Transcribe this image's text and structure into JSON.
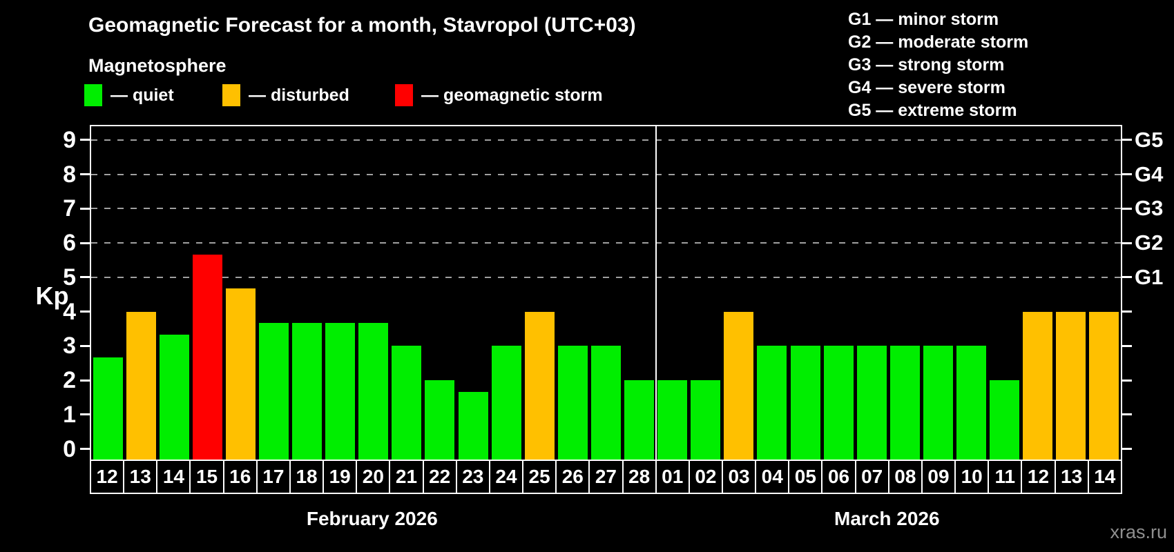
{
  "title": "Geomagnetic Forecast for a month, Stavropol (UTC+03)",
  "subtitle": "Magnetosphere",
  "watermark": "xras.ru",
  "legend": [
    {
      "key": "quiet",
      "label": "— quiet",
      "color": "#00ee00",
      "x": 122
    },
    {
      "key": "disturbed",
      "label": "— disturbed",
      "color": "#ffc000",
      "x": 322
    },
    {
      "key": "storm",
      "label": "— geomagnetic storm",
      "color": "#ff0000",
      "x": 572
    }
  ],
  "g_legend": [
    "G1 — minor storm",
    "G2 — moderate storm",
    "G3 — strong storm",
    "G4 — severe storm",
    "G5 — extreme storm"
  ],
  "chart_data": {
    "type": "bar",
    "ylabel": "Kp",
    "ylim": [
      -0.35,
      9.4
    ],
    "y_ticks": [
      0,
      1,
      2,
      3,
      4,
      5,
      6,
      7,
      8,
      9
    ],
    "gridlines_at": [
      5,
      6,
      7,
      8,
      9
    ],
    "right_axis": [
      {
        "kp": 5,
        "label": "G1"
      },
      {
        "kp": 6,
        "label": "G2"
      },
      {
        "kp": 7,
        "label": "G3"
      },
      {
        "kp": 8,
        "label": "G4"
      },
      {
        "kp": 9,
        "label": "G5"
      }
    ],
    "grid": "dashed-horizontal",
    "legend_position": "top",
    "months": [
      {
        "label": "February 2026",
        "bars": [
          {
            "day": "12",
            "kp": 2.67,
            "status": "quiet"
          },
          {
            "day": "13",
            "kp": 4.0,
            "status": "disturbed"
          },
          {
            "day": "14",
            "kp": 3.33,
            "status": "quiet"
          },
          {
            "day": "15",
            "kp": 5.67,
            "status": "storm"
          },
          {
            "day": "16",
            "kp": 4.67,
            "status": "disturbed"
          },
          {
            "day": "17",
            "kp": 3.67,
            "status": "quiet"
          },
          {
            "day": "18",
            "kp": 3.67,
            "status": "quiet"
          },
          {
            "day": "19",
            "kp": 3.67,
            "status": "quiet"
          },
          {
            "day": "20",
            "kp": 3.67,
            "status": "quiet"
          },
          {
            "day": "21",
            "kp": 3.0,
            "status": "quiet"
          },
          {
            "day": "22",
            "kp": 2.0,
            "status": "quiet"
          },
          {
            "day": "23",
            "kp": 1.67,
            "status": "quiet"
          },
          {
            "day": "24",
            "kp": 3.0,
            "status": "quiet"
          },
          {
            "day": "25",
            "kp": 4.0,
            "status": "disturbed"
          },
          {
            "day": "26",
            "kp": 3.0,
            "status": "quiet"
          },
          {
            "day": "27",
            "kp": 3.0,
            "status": "quiet"
          },
          {
            "day": "28",
            "kp": 2.0,
            "status": "quiet"
          }
        ]
      },
      {
        "label": "March 2026",
        "bars": [
          {
            "day": "01",
            "kp": 2.0,
            "status": "quiet"
          },
          {
            "day": "02",
            "kp": 2.0,
            "status": "quiet"
          },
          {
            "day": "03",
            "kp": 4.0,
            "status": "disturbed"
          },
          {
            "day": "04",
            "kp": 3.0,
            "status": "quiet"
          },
          {
            "day": "05",
            "kp": 3.0,
            "status": "quiet"
          },
          {
            "day": "06",
            "kp": 3.0,
            "status": "quiet"
          },
          {
            "day": "07",
            "kp": 3.0,
            "status": "quiet"
          },
          {
            "day": "08",
            "kp": 3.0,
            "status": "quiet"
          },
          {
            "day": "09",
            "kp": 3.0,
            "status": "quiet"
          },
          {
            "day": "10",
            "kp": 3.0,
            "status": "quiet"
          },
          {
            "day": "11",
            "kp": 2.0,
            "status": "quiet"
          },
          {
            "day": "12",
            "kp": 4.0,
            "status": "disturbed"
          },
          {
            "day": "13",
            "kp": 4.0,
            "status": "disturbed"
          },
          {
            "day": "14",
            "kp": 4.0,
            "status": "disturbed"
          }
        ]
      }
    ]
  },
  "colors": {
    "background": "#000000",
    "axis": "#ffffff",
    "gridline": "#a0a0a0",
    "watermark": "#8f8f8f"
  }
}
